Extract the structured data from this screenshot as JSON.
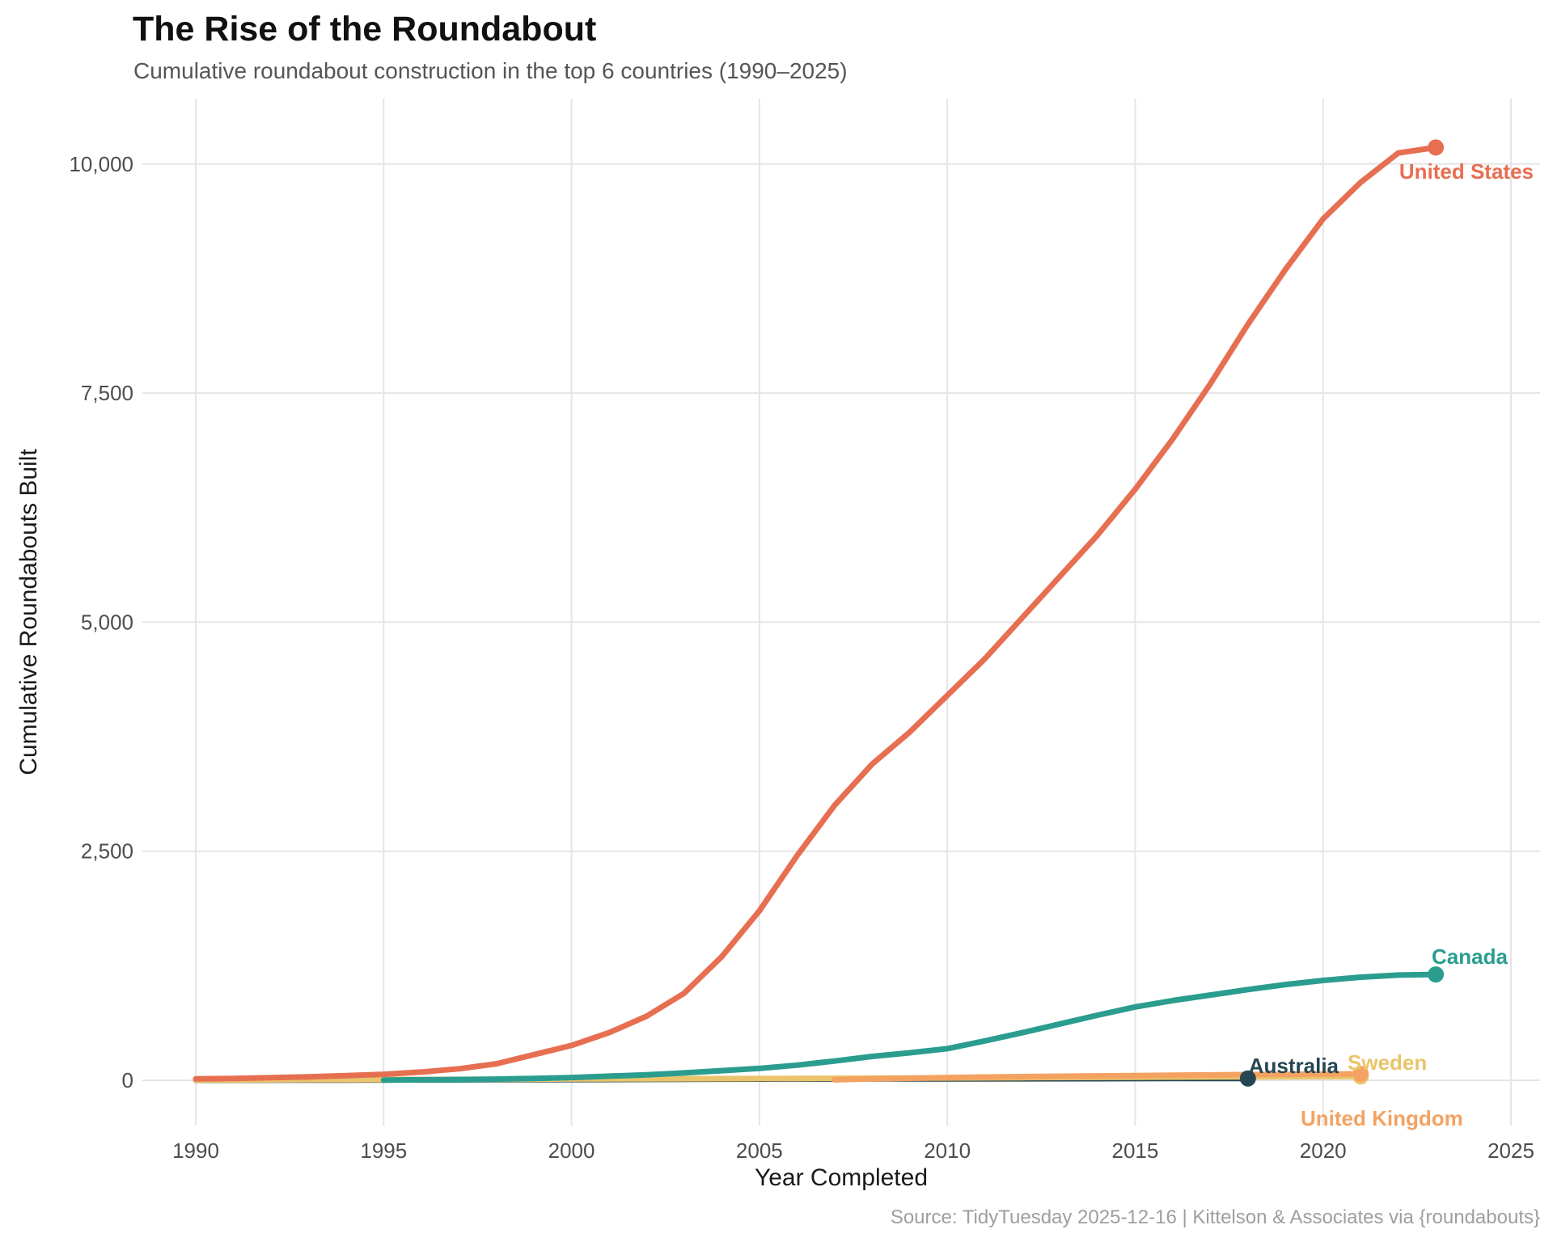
{
  "figure": {
    "title": "The Rise of the Roundabout",
    "subtitle": "Cumulative roundabout construction in the top 6 countries (1990–2025)",
    "caption": "Source: TidyTuesday 2025-12-16 | Kittelson & Associates via {roundabouts}"
  },
  "chart_data": {
    "type": "line",
    "title": "The Rise of the Roundabout",
    "subtitle": "Cumulative roundabout construction in the top 6 countries (1990–2025)",
    "caption": "Source: TidyTuesday 2025-12-16 | Kittelson & Associates via {roundabouts}",
    "xlabel": "Year Completed",
    "ylabel": "Cumulative Roundabouts Built",
    "xlim": [
      1990,
      2025
    ],
    "ylim": [
      0,
      10180
    ],
    "grid": true,
    "legend": "direct-labels-at-line-ends",
    "x_ticks": [
      {
        "value": 1990,
        "label": "1990"
      },
      {
        "value": 1995,
        "label": "1995"
      },
      {
        "value": 2000,
        "label": "2000"
      },
      {
        "value": 2005,
        "label": "2005"
      },
      {
        "value": 2010,
        "label": "2010"
      },
      {
        "value": 2015,
        "label": "2015"
      },
      {
        "value": 2020,
        "label": "2020"
      },
      {
        "value": 2025,
        "label": "2025"
      }
    ],
    "y_ticks": [
      {
        "value": 0,
        "label": "0"
      },
      {
        "value": 2500,
        "label": "2,500"
      },
      {
        "value": 5000,
        "label": "5,000"
      },
      {
        "value": 7500,
        "label": "7,500"
      },
      {
        "value": 10000,
        "label": "10,000"
      }
    ],
    "grid_color": "#e5e5e5",
    "series": [
      {
        "id": "australia",
        "name": "Australia",
        "color": "#264653",
        "end_dot": true,
        "end_value": 20,
        "end_year": 2018,
        "points": [
          [
            1990,
            1
          ],
          [
            1992,
            2
          ],
          [
            1994,
            3
          ],
          [
            1996,
            4
          ],
          [
            1998,
            6
          ],
          [
            2000,
            8
          ],
          [
            2002,
            10
          ],
          [
            2004,
            12
          ],
          [
            2006,
            14
          ],
          [
            2008,
            15
          ],
          [
            2010,
            16
          ],
          [
            2012,
            17
          ],
          [
            2014,
            18
          ],
          [
            2016,
            19
          ],
          [
            2018,
            20
          ]
        ]
      },
      {
        "id": "sweden",
        "name": "Sweden",
        "color": "#e9c46a",
        "end_dot": true,
        "end_value": 42,
        "end_year": 2021,
        "points": [
          [
            1990,
            3
          ],
          [
            1992,
            5
          ],
          [
            1994,
            7
          ],
          [
            1996,
            9
          ],
          [
            1998,
            11
          ],
          [
            2000,
            14
          ],
          [
            2002,
            16
          ],
          [
            2004,
            18
          ],
          [
            2006,
            20
          ],
          [
            2008,
            23
          ],
          [
            2010,
            26
          ],
          [
            2012,
            29
          ],
          [
            2014,
            32
          ],
          [
            2016,
            35
          ],
          [
            2018,
            38
          ],
          [
            2020,
            41
          ],
          [
            2021,
            42
          ]
        ]
      },
      {
        "id": "united-kingdom",
        "name": "United Kingdom",
        "color": "#f4a261",
        "end_dot": true,
        "end_value": 70,
        "end_year": 2021,
        "points": [
          [
            2007,
            5
          ],
          [
            2008,
            15
          ],
          [
            2009,
            22
          ],
          [
            2010,
            30
          ],
          [
            2011,
            35
          ],
          [
            2012,
            40
          ],
          [
            2013,
            44
          ],
          [
            2014,
            48
          ],
          [
            2015,
            51
          ],
          [
            2016,
            55
          ],
          [
            2017,
            58
          ],
          [
            2018,
            62
          ],
          [
            2019,
            65
          ],
          [
            2020,
            68
          ],
          [
            2021,
            70
          ]
        ]
      },
      {
        "id": "canada",
        "name": "Canada",
        "color": "#2a9d8f",
        "end_dot": true,
        "end_value": 1155,
        "end_year": 2023,
        "points": [
          [
            1995,
            3
          ],
          [
            1996,
            5
          ],
          [
            1997,
            8
          ],
          [
            1998,
            12
          ],
          [
            1999,
            20
          ],
          [
            2000,
            30
          ],
          [
            2001,
            45
          ],
          [
            2002,
            60
          ],
          [
            2003,
            80
          ],
          [
            2004,
            105
          ],
          [
            2005,
            130
          ],
          [
            2006,
            165
          ],
          [
            2007,
            210
          ],
          [
            2008,
            260
          ],
          [
            2009,
            300
          ],
          [
            2010,
            345
          ],
          [
            2011,
            430
          ],
          [
            2012,
            520
          ],
          [
            2013,
            615
          ],
          [
            2014,
            710
          ],
          [
            2015,
            800
          ],
          [
            2016,
            870
          ],
          [
            2017,
            930
          ],
          [
            2018,
            990
          ],
          [
            2019,
            1045
          ],
          [
            2020,
            1090
          ],
          [
            2021,
            1125
          ],
          [
            2022,
            1148
          ],
          [
            2023,
            1155
          ]
        ]
      },
      {
        "id": "united-states",
        "name": "United States",
        "color": "#e76f51",
        "end_dot": true,
        "end_value": 10180,
        "end_year": 2023,
        "points": [
          [
            1990,
            15
          ],
          [
            1991,
            20
          ],
          [
            1992,
            28
          ],
          [
            1993,
            38
          ],
          [
            1994,
            50
          ],
          [
            1995,
            65
          ],
          [
            1996,
            90
          ],
          [
            1997,
            125
          ],
          [
            1998,
            180
          ],
          [
            1999,
            280
          ],
          [
            2000,
            380
          ],
          [
            2001,
            520
          ],
          [
            2002,
            700
          ],
          [
            2003,
            950
          ],
          [
            2004,
            1350
          ],
          [
            2005,
            1850
          ],
          [
            2006,
            2450
          ],
          [
            2007,
            3000
          ],
          [
            2008,
            3450
          ],
          [
            2009,
            3800
          ],
          [
            2010,
            4200
          ],
          [
            2011,
            4600
          ],
          [
            2012,
            5050
          ],
          [
            2013,
            5500
          ],
          [
            2014,
            5950
          ],
          [
            2015,
            6450
          ],
          [
            2016,
            7000
          ],
          [
            2017,
            7600
          ],
          [
            2018,
            8250
          ],
          [
            2019,
            8850
          ],
          [
            2020,
            9400
          ],
          [
            2021,
            9800
          ],
          [
            2022,
            10120
          ],
          [
            2023,
            10180
          ]
        ]
      }
    ]
  }
}
